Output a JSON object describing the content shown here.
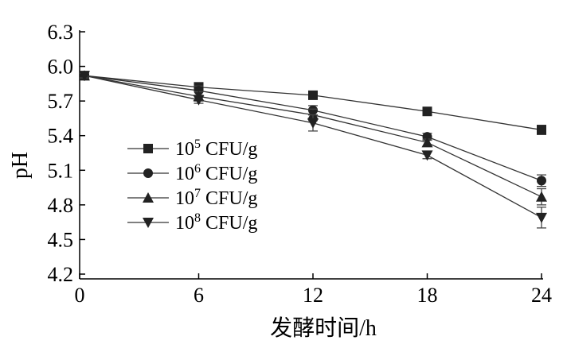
{
  "chart_data": {
    "type": "line",
    "xlabel": "发酵时间/h",
    "ylabel": "pH",
    "x": [
      0,
      6,
      12,
      18,
      24
    ],
    "xticks": [
      "0",
      "6",
      "12",
      "18",
      "24"
    ],
    "xlim": [
      0,
      24
    ],
    "yticks": [
      "4.2",
      "4.5",
      "4.8",
      "5.1",
      "5.4",
      "5.7",
      "6.0",
      "6.3"
    ],
    "ylim": [
      4.2,
      6.3
    ],
    "grid": false,
    "legend_position": "left-center",
    "series": [
      {
        "base": "10",
        "exp": "5",
        "unit": " CFU/g",
        "marker": "square",
        "values": [
          5.92,
          5.82,
          5.75,
          5.61,
          5.45
        ],
        "errors": [
          0.02,
          0.04,
          0.03,
          0.03,
          0.04
        ]
      },
      {
        "base": "10",
        "exp": "6",
        "unit": " CFU/g",
        "marker": "circle",
        "values": [
          5.92,
          5.79,
          5.62,
          5.39,
          5.01
        ],
        "errors": [
          0.02,
          0.04,
          0.04,
          0.03,
          0.05
        ]
      },
      {
        "base": "10",
        "exp": "7",
        "unit": " CFU/g",
        "marker": "triangle-up",
        "values": [
          5.92,
          5.74,
          5.58,
          5.34,
          4.87
        ],
        "errors": [
          0.02,
          0.04,
          0.05,
          0.03,
          0.07
        ]
      },
      {
        "base": "10",
        "exp": "8",
        "unit": " CFU/g",
        "marker": "triangle-down",
        "values": [
          5.92,
          5.71,
          5.51,
          5.23,
          4.69
        ],
        "errors": [
          0.02,
          0.03,
          0.07,
          0.03,
          0.09
        ]
      }
    ]
  }
}
